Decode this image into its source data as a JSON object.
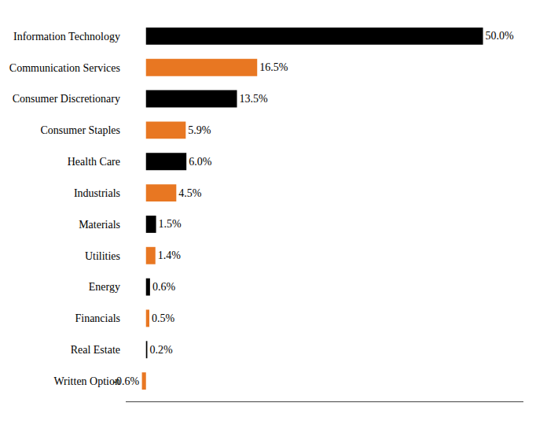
{
  "chart_data": {
    "type": "bar",
    "orientation": "horizontal",
    "categories": [
      "Information Technology",
      "Communication Services",
      "Consumer Discretionary",
      "Consumer Staples",
      "Health Care",
      "Industrials",
      "Materials",
      "Utilities",
      "Energy",
      "Financials",
      "Real Estate",
      "Written Option"
    ],
    "values": [
      50.0,
      16.5,
      13.5,
      5.9,
      6.0,
      4.5,
      1.5,
      1.4,
      0.6,
      0.5,
      0.2,
      -0.6
    ],
    "value_labels": [
      "50.0%",
      "16.5%",
      "13.5%",
      "5.9%",
      "6.0%",
      "4.5%",
      "1.5%",
      "1.4%",
      "0.6%",
      "0.5%",
      "0.2%",
      "-0.6%"
    ],
    "colors": [
      "#000000",
      "#e87722",
      "#000000",
      "#e87722",
      "#000000",
      "#e87722",
      "#000000",
      "#e87722",
      "#000000",
      "#e87722",
      "#000000",
      "#e87722"
    ],
    "xlim": [
      -3,
      56
    ],
    "data_labels": true,
    "tick_labels": "y",
    "grid": false
  }
}
